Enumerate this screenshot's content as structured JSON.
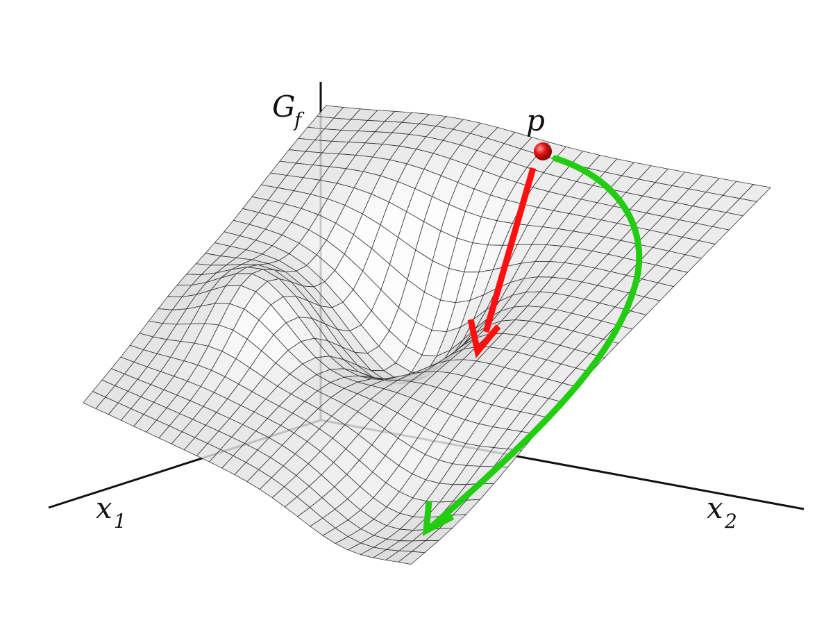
{
  "axes": [
    {
      "symbol": "G",
      "subscript": "f"
    },
    {
      "symbol": "x",
      "subscript": "1"
    },
    {
      "symbol": "x",
      "subscript": "2"
    }
  ],
  "point": {
    "label": "p"
  }
}
